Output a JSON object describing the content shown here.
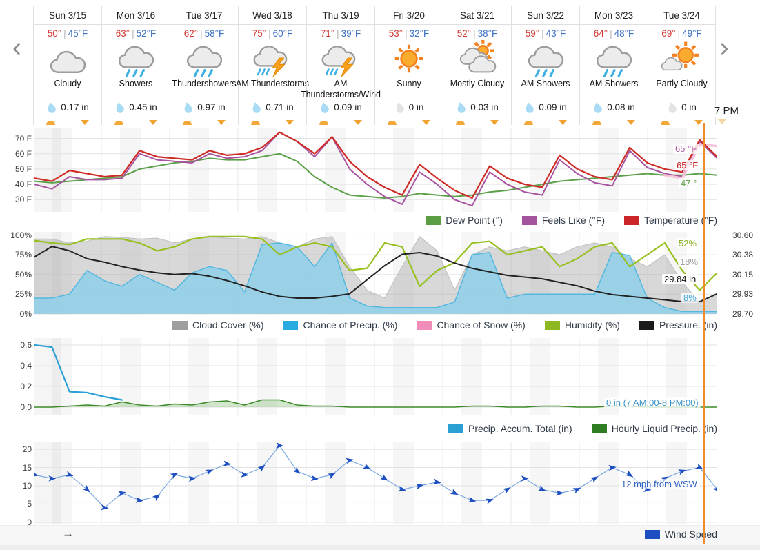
{
  "nav": {
    "prev": "‹",
    "next": "›"
  },
  "header": {
    "hover_time": "7 PM",
    "temp_separator": "|",
    "days": [
      {
        "date": "Sun 3/15",
        "high": "50°",
        "low": "45°F",
        "condition": "Cloudy",
        "icon": "cloudy",
        "precip": "0.17 in",
        "wet": true
      },
      {
        "date": "Mon 3/16",
        "high": "63°",
        "low": "52°F",
        "condition": "Showers",
        "icon": "showers",
        "precip": "0.45 in",
        "wet": true
      },
      {
        "date": "Tue 3/17",
        "high": "62°",
        "low": "58°F",
        "condition": "Thundershowers",
        "icon": "showers",
        "precip": "0.97 in",
        "wet": true
      },
      {
        "date": "Wed 3/18",
        "high": "75°",
        "low": "60°F",
        "condition": "AM Thunderstorms",
        "icon": "thunderstorm",
        "precip": "0.71 in",
        "wet": true
      },
      {
        "date": "Thu 3/19",
        "high": "71°",
        "low": "39°F",
        "condition": "AM Thunderstorms/Wind",
        "icon": "thunderstorm",
        "precip": "0.09 in",
        "wet": true
      },
      {
        "date": "Fri 3/20",
        "high": "53°",
        "low": "32°F",
        "condition": "Sunny",
        "icon": "sunny",
        "precip": "0 in",
        "wet": false
      },
      {
        "date": "Sat 3/21",
        "high": "52°",
        "low": "38°F",
        "condition": "Mostly Cloudy",
        "icon": "mostly-cloudy",
        "precip": "0.03 in",
        "wet": true
      },
      {
        "date": "Sun 3/22",
        "high": "59°",
        "low": "43°F",
        "condition": "AM Showers",
        "icon": "showers",
        "precip": "0.09 in",
        "wet": true
      },
      {
        "date": "Mon 3/23",
        "high": "64°",
        "low": "48°F",
        "condition": "AM Showers",
        "icon": "showers",
        "precip": "0.08 in",
        "wet": true
      },
      {
        "date": "Tue 3/24",
        "high": "69°",
        "low": "49°F",
        "condition": "Partly Cloudy",
        "icon": "partly-cloudy",
        "precip": "0 in",
        "wet": false
      }
    ]
  },
  "misc": {
    "scroll_arrow": "→"
  },
  "chart_data": [
    {
      "type": "line",
      "title": "Temperature / Feels Like / Dew Point (°F)",
      "x_range": "Sun 3/15 - Tue 3/24, 6-hour samples",
      "ylim": [
        22,
        77
      ],
      "yticks": [
        70,
        60,
        50,
        40,
        30
      ],
      "yticklabels": [
        "70 F",
        "60 F",
        "50 F",
        "40 F",
        "30 F"
      ],
      "legend_position": "bottom-right",
      "legend": [
        {
          "label": "Dew Point (°)",
          "color": "#5b9e43"
        },
        {
          "label": "Feels Like (°F)",
          "color": "#a5539e"
        },
        {
          "label": "Temperature (°F)",
          "color": "#cc2529"
        }
      ],
      "annotations": [
        {
          "text": "65 °F",
          "color": "#b05ba5"
        },
        {
          "text": "65 °F",
          "color": "#cc2529"
        },
        {
          "text": "47 °",
          "color": "#5b9e43"
        }
      ],
      "series": [
        {
          "name": "Dew Point (°)",
          "style": "line",
          "color": "#5ba048",
          "width": 2,
          "values": [
            42,
            41,
            42,
            43,
            44,
            45,
            50,
            52,
            54,
            55,
            57,
            56,
            56,
            58,
            60,
            55,
            45,
            38,
            33,
            32,
            31,
            32,
            34,
            33,
            32,
            33,
            35,
            36,
            38,
            40,
            42,
            43,
            44,
            45,
            46,
            47,
            46,
            46,
            47,
            46
          ]
        },
        {
          "name": "Feels Like (°F)",
          "style": "line",
          "color": "#a8539f",
          "width": 2,
          "values": [
            40,
            37,
            45,
            43,
            43,
            44,
            60,
            56,
            55,
            54,
            60,
            57,
            58,
            62,
            74,
            68,
            58,
            71,
            50,
            40,
            32,
            27,
            48,
            40,
            30,
            26,
            48,
            40,
            35,
            33,
            56,
            47,
            41,
            39,
            62,
            51,
            47,
            45,
            68,
            57
          ]
        },
        {
          "name": "Feels Like (hover highlight)",
          "style": "line",
          "color": "#f5c3d8",
          "width": 3.5,
          "opacity": 0.95,
          "values": [
            null,
            null,
            null,
            null,
            null,
            null,
            null,
            null,
            null,
            null,
            null,
            null,
            null,
            null,
            null,
            null,
            null,
            null,
            null,
            null,
            null,
            null,
            null,
            null,
            null,
            null,
            null,
            null,
            null,
            null,
            null,
            null,
            null,
            null,
            null,
            null,
            46,
            44,
            66,
            65
          ]
        },
        {
          "name": "Temperature (°F)",
          "style": "line",
          "color": "#cf2b27",
          "width": 2.2,
          "values": [
            44,
            42,
            49,
            47,
            45,
            46,
            62,
            58,
            57,
            56,
            62,
            59,
            60,
            64,
            74,
            68,
            60,
            71,
            55,
            45,
            38,
            33,
            53,
            44,
            36,
            31,
            52,
            44,
            40,
            38,
            59,
            50,
            45,
            43,
            64,
            54,
            50,
            48,
            69,
            58
          ]
        }
      ]
    },
    {
      "type": "area",
      "title": "Cloud Cover / Chance of Precip. / Chance of Snow / Humidity / Pressure",
      "ylim": [
        -1,
        104
      ],
      "yticks": [
        100,
        75,
        50,
        25,
        0
      ],
      "yticklabels": [
        "100%",
        "75%",
        "50%",
        "25%",
        "0%"
      ],
      "y2lim": [
        29.691,
        30.636
      ],
      "y2ticks": [
        30.6,
        30.38,
        30.15,
        29.93,
        29.7
      ],
      "y2ticklabels": [
        "30.60",
        "30.38",
        "30.15",
        "29.93",
        "29.70"
      ],
      "legend": [
        {
          "label": "Cloud Cover (%)",
          "color": "#9e9e9e"
        },
        {
          "label": "Chance of Precip. (%)",
          "color": "#29aae1"
        },
        {
          "label": "Chance of Snow (%)",
          "color": "#f08cb8"
        },
        {
          "label": "Humidity (%)",
          "color": "#8db821"
        },
        {
          "label": "Pressure. (in)",
          "color": "#1a1a1a"
        }
      ],
      "annotations": [
        {
          "text": "52%",
          "color": "#8ab224"
        },
        {
          "text": "18%",
          "color": "#9b9b9b"
        },
        {
          "text": "29.84 in",
          "color": "#111111"
        },
        {
          "text": "8%",
          "color": "#3da8dc"
        }
      ],
      "series": [
        {
          "name": "Cloud Cover (%)",
          "style": "area",
          "color": "#c2c2c2",
          "fill": "#a9a9a9",
          "fill_opacity": 0.45,
          "width": 1.2,
          "values": [
            95,
            95,
            90,
            92,
            98,
            97,
            95,
            96,
            90,
            95,
            98,
            96,
            95,
            98,
            90,
            85,
            95,
            98,
            60,
            30,
            20,
            60,
            98,
            80,
            30,
            75,
            85,
            80,
            85,
            80,
            75,
            85,
            90,
            85,
            70,
            60,
            75,
            40,
            15,
            25
          ]
        },
        {
          "name": "Chance of Snow (%)",
          "style": "none",
          "color": "#f08cb8",
          "values": [
            0,
            0,
            0,
            0,
            0,
            0,
            0,
            0,
            0,
            0,
            0,
            0,
            0,
            0,
            0,
            0,
            0,
            0,
            0,
            0,
            0,
            0,
            0,
            0,
            0,
            0,
            0,
            0,
            0,
            0,
            0,
            0,
            0,
            0,
            0,
            0,
            0,
            0,
            0,
            0
          ]
        },
        {
          "name": "Chance of Precip. (%)",
          "style": "area",
          "color": "#53b7e0",
          "fill": "#8fd0ea",
          "fill_opacity": 0.85,
          "width": 1.5,
          "values": [
            20,
            20,
            25,
            55,
            42,
            35,
            50,
            40,
            30,
            52,
            60,
            55,
            28,
            88,
            90,
            85,
            60,
            90,
            20,
            10,
            8,
            8,
            8,
            8,
            15,
            75,
            78,
            20,
            25,
            25,
            25,
            25,
            25,
            78,
            74,
            20,
            8,
            3,
            3,
            3
          ]
        },
        {
          "name": "Humidity (%)",
          "style": "line",
          "color": "#97c021",
          "width": 2.2,
          "values": [
            93,
            90,
            88,
            95,
            95,
            95,
            90,
            80,
            85,
            95,
            98,
            98,
            98,
            95,
            75,
            85,
            90,
            85,
            55,
            58,
            90,
            85,
            35,
            55,
            65,
            90,
            92,
            75,
            80,
            85,
            60,
            70,
            85,
            90,
            60,
            75,
            90,
            55,
            30,
            52
          ]
        },
        {
          "name": "Pressure. (in)",
          "style": "line",
          "color": "#222222",
          "width": 2,
          "ylim": [
            29.691,
            30.636
          ],
          "values": [
            30.35,
            30.47,
            30.42,
            30.33,
            30.29,
            30.24,
            30.2,
            30.17,
            30.15,
            30.16,
            30.13,
            30.08,
            30.02,
            29.95,
            29.9,
            29.88,
            29.88,
            29.9,
            29.93,
            30.09,
            30.25,
            30.38,
            30.4,
            30.36,
            30.28,
            30.22,
            30.18,
            30.14,
            30.12,
            30.1,
            30.06,
            30.02,
            29.96,
            29.92,
            29.9,
            29.88,
            29.86,
            29.84,
            29.84,
            29.93
          ]
        }
      ]
    },
    {
      "type": "area",
      "title": "Precip. Accum. Total / Hourly Liquid Precip. (in)",
      "ylim": [
        -0.08,
        0.667
      ],
      "yticks": [
        0.6,
        0.4,
        0.2,
        0.0
      ],
      "yticklabels": [
        "0.6",
        "0.4",
        "0.2",
        "0.0"
      ],
      "legend": [
        {
          "label": "Precip. Accum. Total (in)",
          "color": "#2a9fd4"
        },
        {
          "label": "Hourly Liquid Precip. (in)",
          "color": "#2e7d22"
        }
      ],
      "annotations": [
        {
          "text": "0 in (7 AM:00-8 PM:00)",
          "color": "#3a93c9"
        }
      ],
      "series": [
        {
          "name": "Hourly Liquid Precip. (in)",
          "style": "area",
          "color": "#3c8a28",
          "fill": "#7db86a",
          "fill_opacity": 0.35,
          "width": 1.6,
          "values": [
            0,
            0,
            0.01,
            0.02,
            0.01,
            0.05,
            0.02,
            0.01,
            0.03,
            0.02,
            0.05,
            0.06,
            0.02,
            0.07,
            0.07,
            0.02,
            0.01,
            0.01,
            0,
            0,
            0,
            0,
            0,
            0,
            0,
            0.01,
            0.01,
            0,
            0,
            0.01,
            0.01,
            0,
            0,
            0.01,
            0.01,
            0,
            0,
            0,
            0,
            0
          ]
        },
        {
          "name": "Precip. Accum. Total (in)",
          "style": "line",
          "color": "#2aa0d6",
          "width": 2.2,
          "values": [
            0.6,
            0.58,
            0.15,
            0.14,
            0.1,
            0.07,
            null,
            null,
            null,
            null,
            null,
            null,
            null,
            null,
            null,
            null,
            null,
            null,
            null,
            null,
            null,
            null,
            null,
            null,
            null,
            null,
            null,
            null,
            null,
            null,
            null,
            null,
            null,
            null,
            null,
            null,
            null,
            null,
            null,
            null
          ]
        }
      ]
    },
    {
      "type": "line",
      "title": "Wind Speed (mph)",
      "ylim": [
        -0.6,
        22.1
      ],
      "yticks": [
        20,
        15,
        10,
        5,
        0
      ],
      "yticklabels": [
        "20",
        "15",
        "10",
        "5",
        "0"
      ],
      "legend": [
        {
          "label": "Wind Speed",
          "color": "#1e4fc2"
        }
      ],
      "annotations": [
        {
          "text": "12 mph from WSW",
          "color": "#2f62c4"
        }
      ],
      "series": [
        {
          "name": "Wind Speed",
          "style": "wind",
          "color": "#7aa7e0",
          "arrow_color": "#1d4fc0",
          "width": 1.2,
          "values": [
            13,
            12,
            13,
            9,
            4,
            8,
            6,
            7,
            13,
            12,
            14,
            16,
            13,
            15,
            21,
            14,
            12,
            13,
            17,
            15,
            12,
            9,
            10,
            11,
            8,
            6,
            6,
            9,
            12,
            9,
            8,
            9,
            12,
            15,
            13,
            9,
            12,
            14,
            15,
            9
          ]
        }
      ]
    }
  ]
}
